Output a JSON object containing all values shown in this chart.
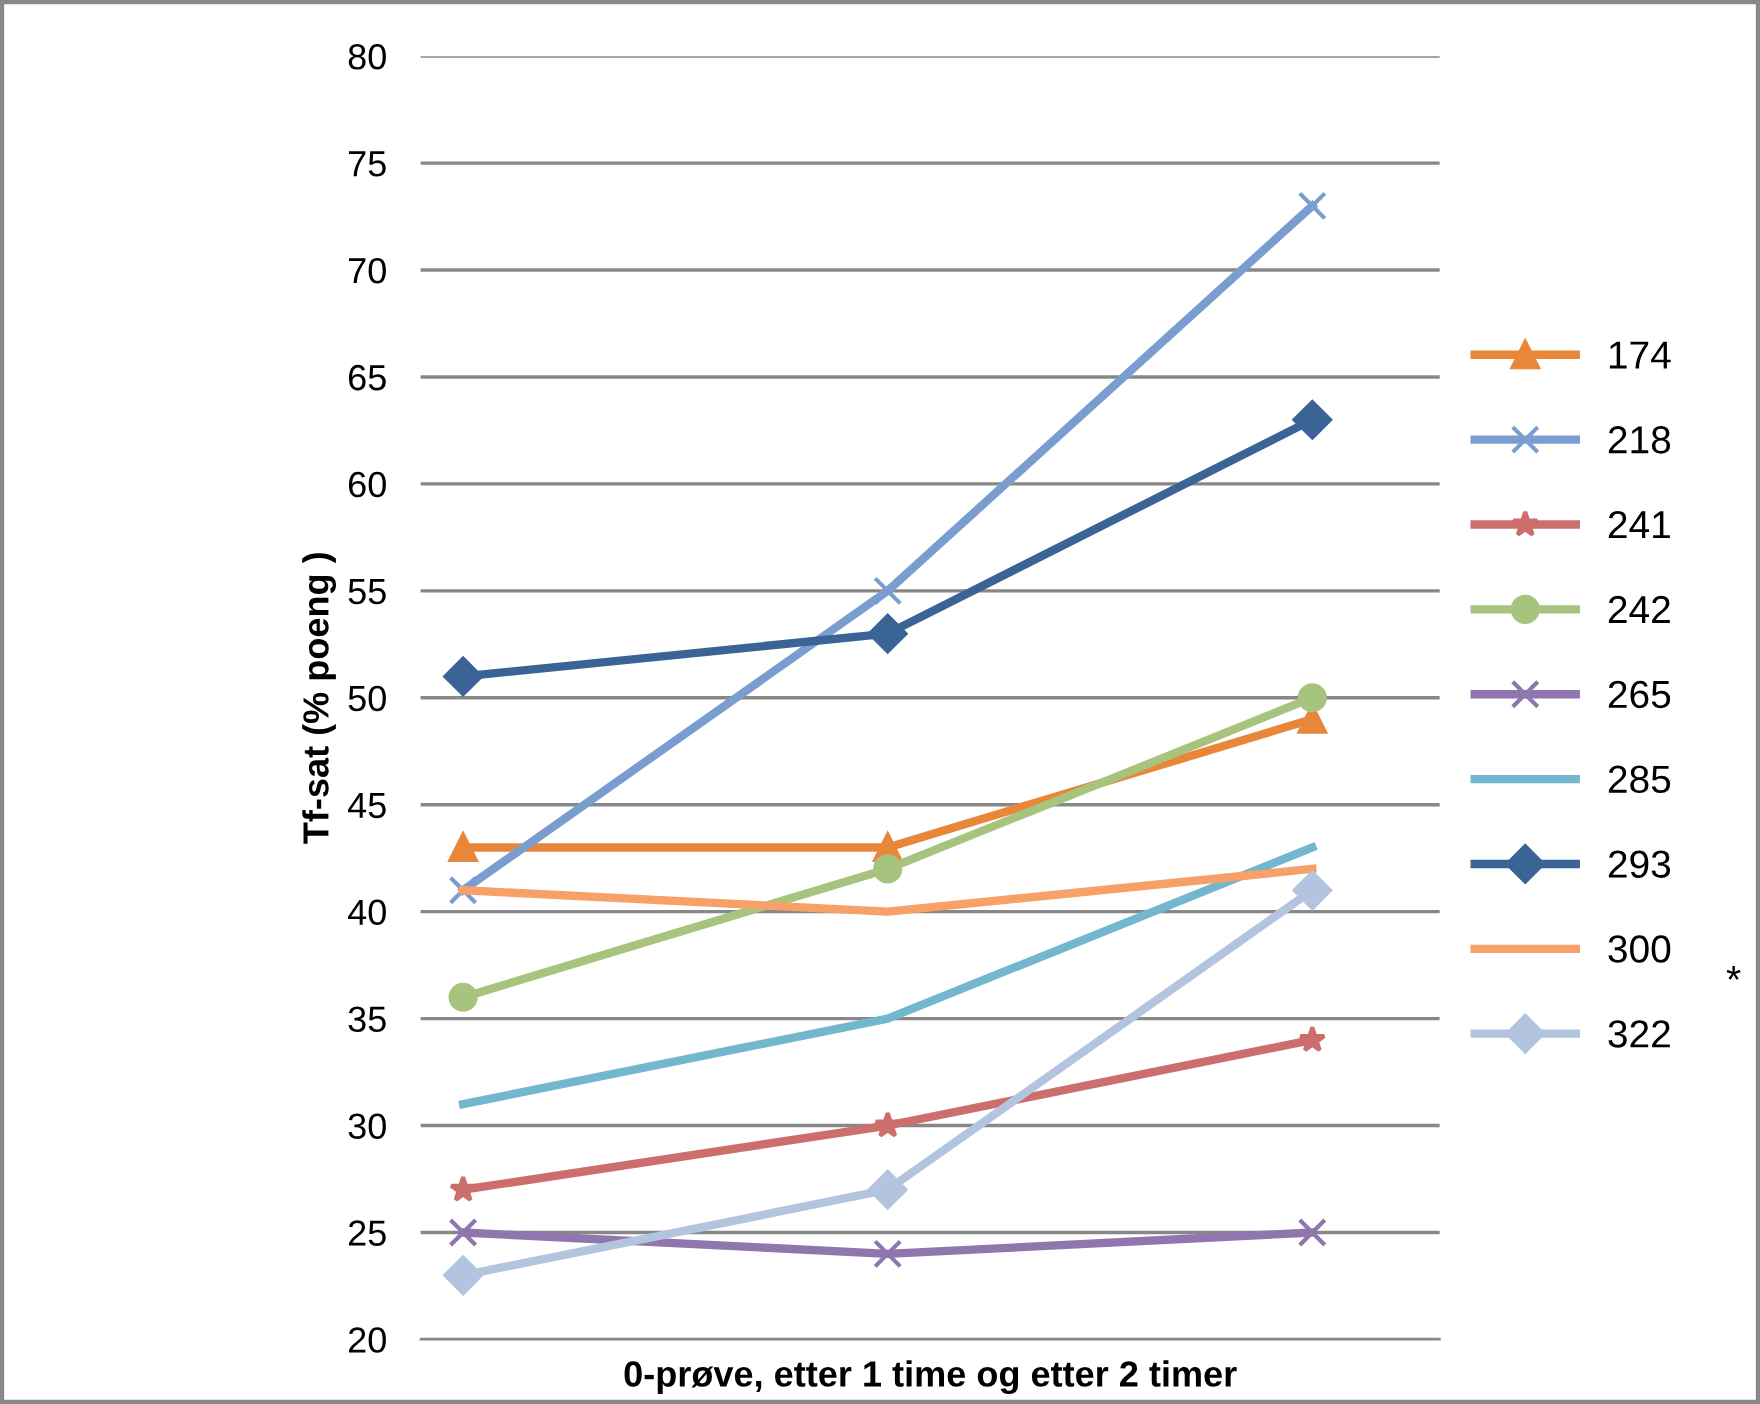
{
  "chart_data": {
    "type": "line",
    "xlabel": "0-prøve, etter 1 time og etter 2 timer",
    "ylabel": "Tf-sat (% poeng )",
    "categories": [
      null,
      null,
      null
    ],
    "series": [
      {
        "name": "174",
        "color": "#e8873a",
        "marker": "triangle",
        "values": [
          43,
          43,
          49
        ]
      },
      {
        "name": "218",
        "color": "#7a9dd0",
        "marker": "cross",
        "values": [
          41,
          55,
          73
        ]
      },
      {
        "name": "241",
        "color": "#cc6f6c",
        "marker": "star",
        "values": [
          27,
          30,
          34
        ]
      },
      {
        "name": "242",
        "color": "#a7c47e",
        "marker": "circle",
        "values": [
          36,
          42,
          50
        ]
      },
      {
        "name": "265",
        "color": "#8f77ad",
        "marker": "cross",
        "values": [
          25,
          24,
          25
        ]
      },
      {
        "name": "285",
        "color": "#72b7cd",
        "marker": "none",
        "values": [
          31,
          35,
          43
        ]
      },
      {
        "name": "293",
        "color": "#3a6496",
        "marker": "diamond",
        "values": [
          51,
          53,
          63
        ]
      },
      {
        "name": "300",
        "color": "#f7a068",
        "marker": "none",
        "values": [
          41,
          40,
          42
        ]
      },
      {
        "name": "322",
        "color": "#b3c4df",
        "marker": "diamond",
        "values": [
          23,
          27,
          41
        ]
      }
    ],
    "ylim": [
      20,
      80
    ],
    "yticks": [
      20,
      25,
      30,
      35,
      40,
      45,
      50,
      55,
      60,
      65,
      70,
      75,
      80
    ],
    "grid": "y",
    "legend": "right",
    "annotations": [
      "*"
    ]
  }
}
